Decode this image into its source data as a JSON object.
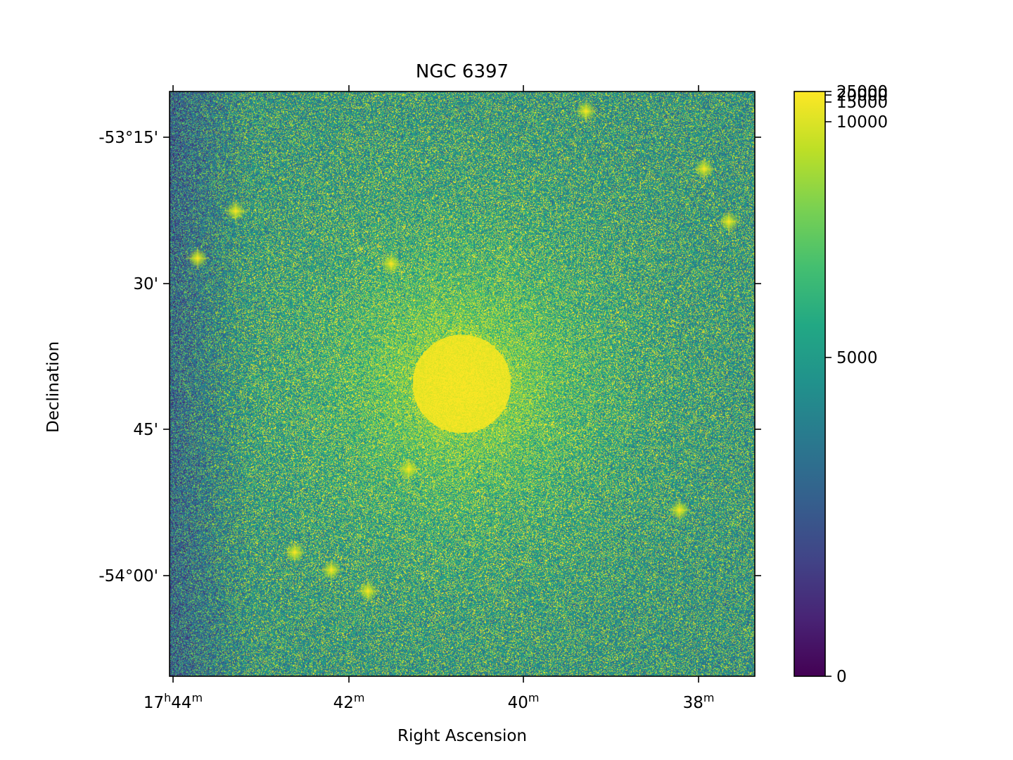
{
  "chart_data": {
    "type": "heatmap",
    "title": "NGC 6397",
    "xlabel": "Right Ascension",
    "ylabel": "Declination",
    "x_ticks": [
      {
        "label_main": "17",
        "sup1": "h",
        "label_mid": "44",
        "sup2": "m"
      },
      {
        "label_main": "42",
        "sup1": "",
        "label_mid": "",
        "sup2": "m"
      },
      {
        "label_main": "40",
        "sup1": "",
        "label_mid": "",
        "sup2": "m"
      },
      {
        "label_main": "38",
        "sup1": "",
        "label_mid": "",
        "sup2": "m"
      }
    ],
    "y_ticks": [
      "-53°15'",
      "30'",
      "45'",
      "-54°00'"
    ],
    "colorbar": {
      "colormap": "viridis",
      "scale": "asinh-like (nonlinear stretch)",
      "range": [
        0,
        25000
      ],
      "tick_values": [
        0,
        5000,
        10000,
        15000,
        20000,
        25000
      ],
      "tick_labels": [
        "0",
        "5000",
        "10000",
        "15000",
        "20000",
        "25000"
      ]
    },
    "image": {
      "description_values": "star field intensity; bright core near center",
      "background_level": 4500,
      "core_peak": 12000
    }
  }
}
